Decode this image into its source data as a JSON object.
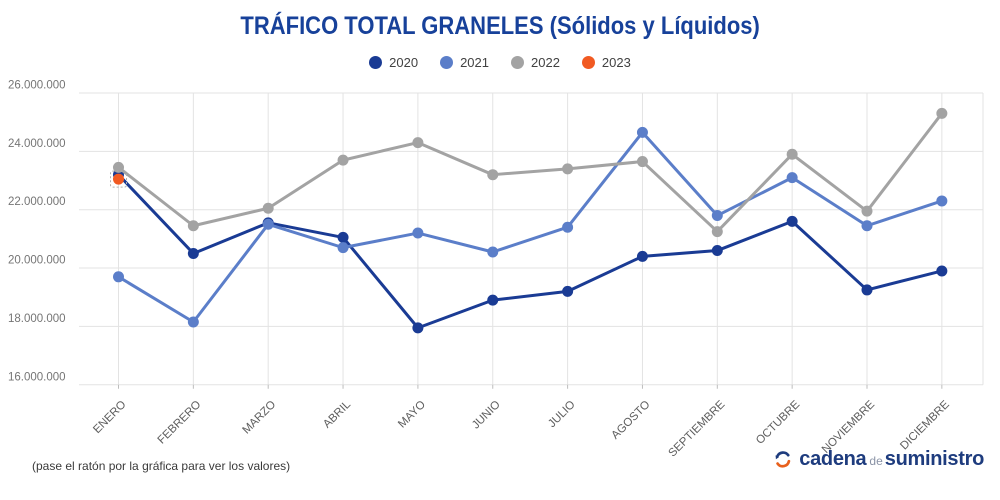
{
  "title": "TRÁFICO TOTAL GRANELES (Sólidos y Líquidos)",
  "hover_hint": "(pase el ratón por la gráfica para ver los valores)",
  "logo": {
    "part1": "cadena",
    "part2": "de",
    "part3": "suministro"
  },
  "colors": {
    "title": "#17419a",
    "axis_value_labels": "#757575",
    "month_labels": "#5e5e5e",
    "gridlines": "#e3e3e3",
    "footer_text": "#3a3a3a",
    "logo_blue": "#1e3c7e",
    "logo_gray": "#8a93a6",
    "logo_orange": "#e8601c",
    "background": "#ffffff"
  },
  "chart_data": {
    "type": "line",
    "title": "TRÁFICO TOTAL GRANELES (Sólidos y Líquidos)",
    "categories": [
      "ENERO",
      "FEBRERO",
      "MARZO",
      "ABRIL",
      "MAYO",
      "JUNIO",
      "JULIO",
      "AGOSTO",
      "SEPTIEMBRE",
      "OCTUBRE",
      "NOVIEMBRE",
      "DICIEMBRE"
    ],
    "series": [
      {
        "name": "2020",
        "color": "#1a3b94",
        "values": [
          23200000,
          20500000,
          21550000,
          21050000,
          17950000,
          18900000,
          19200000,
          20400000,
          20600000,
          21600000,
          19250000,
          19900000
        ]
      },
      {
        "name": "2021",
        "color": "#5b7ec9",
        "values": [
          19700000,
          18150000,
          21500000,
          20700000,
          21200000,
          20550000,
          21400000,
          24650000,
          21800000,
          23100000,
          21450000,
          22300000
        ]
      },
      {
        "name": "2022",
        "color": "#a3a3a3",
        "values": [
          23450000,
          21450000,
          22050000,
          23700000,
          24300000,
          23200000,
          23400000,
          23650000,
          21250000,
          23900000,
          21950000,
          25300000
        ]
      },
      {
        "name": "2023",
        "color": "#f15a22",
        "values": [
          23050000,
          null,
          null,
          null,
          null,
          null,
          null,
          null,
          null,
          null,
          null,
          null
        ]
      }
    ],
    "ylim": [
      16000000,
      26000000
    ],
    "ytick_step": 2000000,
    "grid": true,
    "legend_position": "top-center",
    "x_label_rotation": -45,
    "selected_point": {
      "series": "2023",
      "category": "ENERO"
    }
  }
}
